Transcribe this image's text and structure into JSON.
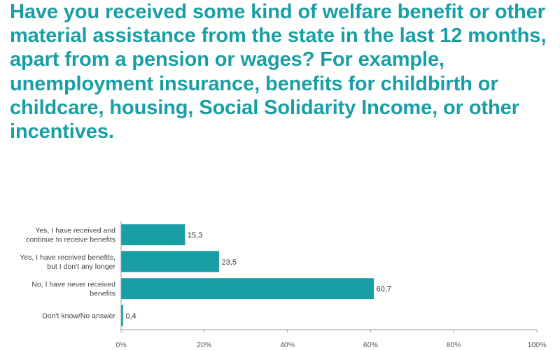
{
  "colors": {
    "accent": "#1a9ea6",
    "bar": "#1a9ea6",
    "axis": "#9a9a9a",
    "text": "#444444"
  },
  "chart_data": {
    "type": "bar",
    "orientation": "horizontal",
    "title": "Have you received some kind of welfare benefit or other material assistance from the state in the last 12 months, apart from a pension or wages? For example, unemployment insurance, benefits for childbirth or childcare, housing, Social Solidarity Income, or other incentives.",
    "categories": [
      [
        "Yes, I have received and",
        "continue to receive benefits"
      ],
      [
        "Yes, I have received benefits,",
        "but I don't any longer"
      ],
      [
        "No, I have never received",
        "benefits"
      ],
      [
        "Don't know/No answer"
      ]
    ],
    "values": [
      15.3,
      23.5,
      60.7,
      0.4
    ],
    "value_labels": [
      "15,3",
      "23,5",
      "60,7",
      "0,4"
    ],
    "xlim": [
      0,
      100
    ],
    "xticks": [
      0,
      20,
      40,
      60,
      80,
      100
    ],
    "xtick_labels": [
      "0%",
      "20%",
      "40%",
      "60%",
      "80%",
      "100%"
    ],
    "grid": false,
    "legend": "none"
  }
}
